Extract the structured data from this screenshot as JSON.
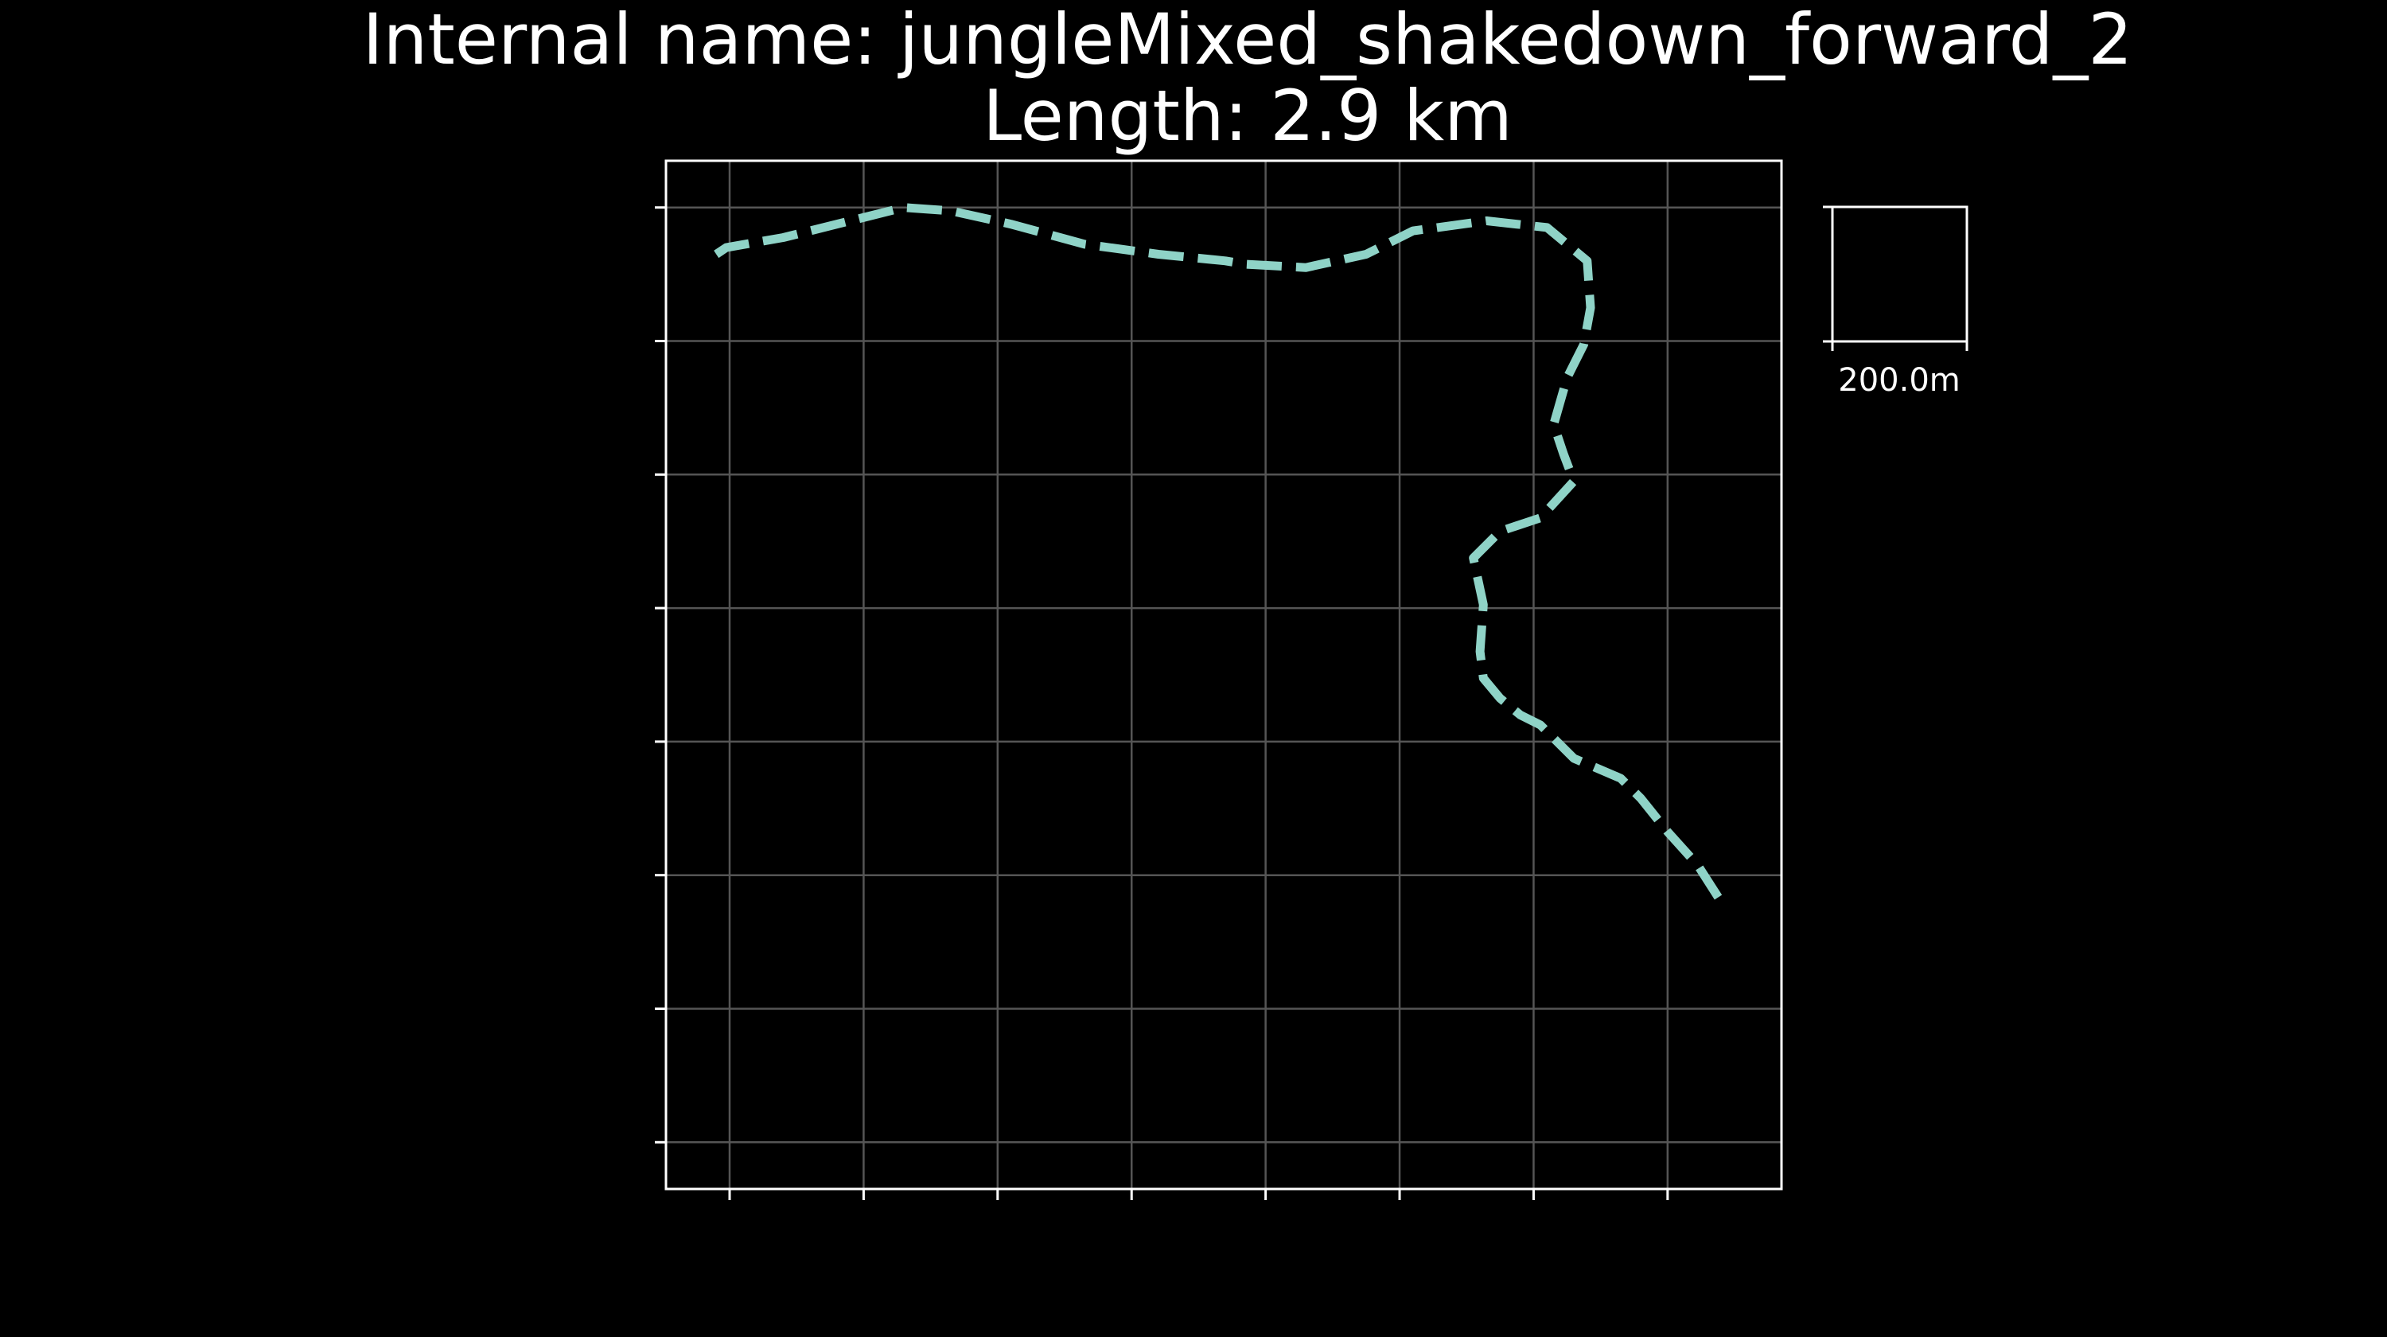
{
  "chart_data": {
    "type": "line",
    "title": "Internal name: jungleMixed_shakedown_forward_2",
    "subtitle": "Length: 2.9 km",
    "xlabel": "",
    "ylabel": "",
    "x_unit": "m",
    "y_unit": "m",
    "xlim": [
      -95,
      1570
    ],
    "ylim": [
      -70,
      1470
    ],
    "grid": true,
    "tick_labels_shown": false,
    "grid_spacing_m": 200,
    "line_style": "dashed",
    "line_color": "#8fd3c7",
    "series": [
      {
        "x": [
          -20,
          -5,
          80,
          160,
          260,
          330,
          420,
          530,
          640,
          740,
          770,
          860,
          950,
          1020,
          1130,
          1220,
          1280,
          1285,
          1275,
          1250,
          1230,
          1245,
          1260,
          1210,
          1150,
          1110,
          1125,
          1120,
          1125,
          1150,
          1180,
          1210,
          1260,
          1330,
          1360,
          1400,
          1445,
          1480
        ],
        "y": [
          1330,
          1340,
          1355,
          1375,
          1400,
          1395,
          1375,
          1345,
          1330,
          1320,
          1315,
          1310,
          1330,
          1365,
          1380,
          1370,
          1320,
          1250,
          1195,
          1145,
          1075,
          1030,
          990,
          935,
          915,
          875,
          805,
          735,
          695,
          665,
          640,
          625,
          575,
          545,
          515,
          465,
          415,
          360
        ]
      }
    ],
    "scale_bar": {
      "label": "200.0m",
      "length_m": 200
    }
  },
  "colors": {
    "background": "#000000",
    "foreground": "#ffffff",
    "grid": "#555555",
    "track": "#8fd3c7"
  }
}
